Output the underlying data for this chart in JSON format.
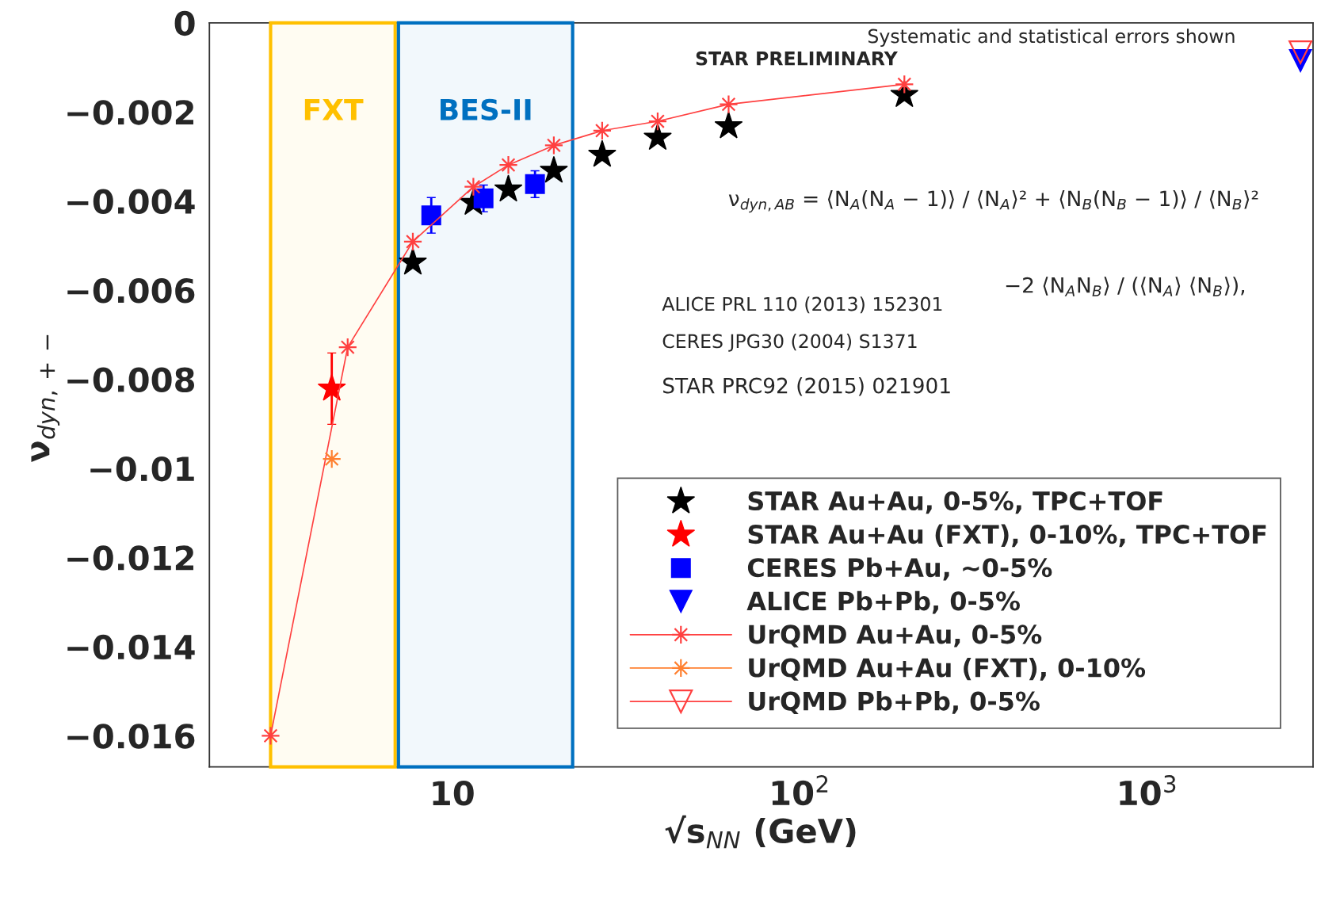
{
  "chart_data": {
    "type": "scatter",
    "xlabel": "√s$_{NN}$ (GeV)",
    "ylabel": "ν$_{dyn,+−}$",
    "log": "x",
    "xlim": [
      2,
      3000
    ],
    "ylim": [
      -0.0167,
      0
    ],
    "xticks": [
      {
        "value": 10,
        "label": "10"
      },
      {
        "value": 100,
        "label": "10$^{2}$"
      },
      {
        "value": 1000,
        "label": "10$^{3}$"
      }
    ],
    "yticks": [
      0,
      {
        "value": -0.002,
        "label": "−0.002"
      },
      {
        "value": -0.004,
        "label": "−0.004"
      },
      {
        "value": -0.006,
        "label": "−0.006"
      },
      {
        "value": -0.008,
        "label": "−0.008"
      },
      {
        "value": -0.01,
        "label": "−0.01"
      },
      {
        "value": -0.012,
        "label": "−0.012"
      },
      {
        "value": -0.014,
        "label": "−0.014"
      },
      {
        "value": -0.016,
        "label": "−0.016"
      }
    ],
    "grid": false,
    "legend": "bottom right",
    "bands": [
      {
        "axis": "x",
        "from": 3.0,
        "to": 6.85,
        "label": "FXT",
        "color": "#ffc000"
      },
      {
        "axis": "x",
        "from": 7.0,
        "to": 22.2,
        "label": "BES-II",
        "color": "#0070c0"
      }
    ],
    "annotations": [
      "STAR PRELIMINARY",
      "Systematic and statistical errors shown",
      "ν$_{dyn,AB}$ = ⟨N$_{A}$(N$_{A}$ − 1)⟩ / ⟨N$_{A}$⟩² + ⟨N$_{B}$(N$_{B}$ − 1)⟩ / ⟨N$_{B}$⟩²",
      "−2 ⟨N$_{A}$N$_{B}$⟩ / (⟨N$_{A}$⟩ ⟨N$_{B}$⟩),",
      "ALICE PRL 110 (2013) 152301",
      "CERES JPG30 (2004) S1371",
      "STAR PRC92 (2015) 021901"
    ],
    "series": [
      {
        "name": "STAR Au+Au, 0-5%, TPC+TOF",
        "marker": "star",
        "color": "#000000",
        "x": [
          7.7,
          11.5,
          14.5,
          19.6,
          27,
          39,
          62.4,
          200
        ],
        "values": [
          -0.00538,
          -0.00404,
          -0.00374,
          -0.00332,
          -0.00296,
          -0.00258,
          -0.00232,
          -0.00162
        ]
      },
      {
        "name": "STAR Au+Au (FXT), 0-10%, TPC+TOF",
        "marker": "star",
        "color": "#ff0000",
        "x": [
          4.5
        ],
        "values": [
          -0.00821
        ],
        "errors": [
          0.0008
        ]
      },
      {
        "name": "CERES Pb+Au, ~0-5%",
        "marker": "square",
        "color": "#0000ff",
        "x": [
          8.7,
          12.3,
          17.3
        ],
        "values": [
          -0.00432,
          -0.00394,
          -0.00362
        ],
        "errors": [
          0.0004,
          0.0003,
          0.0003
        ]
      },
      {
        "name": "ALICE Pb+Pb, 0-5%",
        "marker": "triangle",
        "color": "#0000ff",
        "x": [
          2760
        ],
        "values": [
          -0.00085
        ]
      },
      {
        "name": "UrQMD Au+Au, 0-5%",
        "type": "line",
        "marker": "cross",
        "color": "#ff4040",
        "x": [
          3.0,
          5.0,
          7.7,
          11.5,
          14.5,
          19.6,
          27,
          39,
          62.4,
          200
        ],
        "values": [
          -0.016,
          -0.00728,
          -0.00491,
          -0.00368,
          -0.00319,
          -0.00275,
          -0.00242,
          -0.00221,
          -0.00183,
          -0.00138
        ]
      },
      {
        "name": "UrQMD Au+Au (FXT), 0-10%",
        "type": "line",
        "marker": "cross",
        "color": "#ff8030",
        "x": [
          4.5
        ],
        "values": [
          -0.00979
        ]
      },
      {
        "name": "UrQMD Pb+Pb, 0-5%",
        "type": "line",
        "marker": "triangle",
        "color": "#ff4040",
        "x": [
          2760
        ],
        "values": [
          -0.00066
        ]
      }
    ]
  }
}
